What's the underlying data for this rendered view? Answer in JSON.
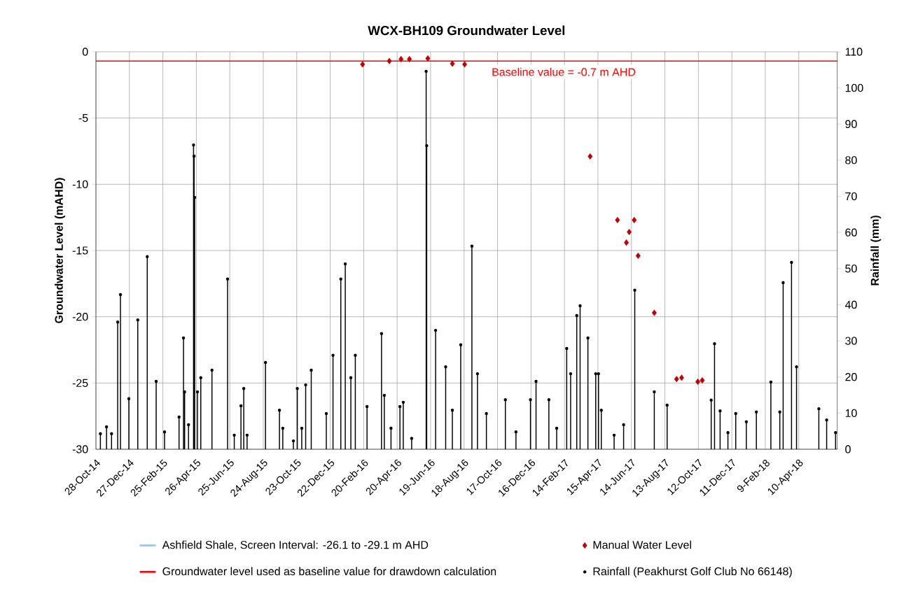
{
  "chart_data": {
    "type": "line",
    "title": "WCX-BH109 Groundwater Level",
    "ylabel": "Groundwater Level (mAHD)",
    "y2label": "Rainfall (mm)",
    "xlim": [
      "2014-10-28",
      "2018-06-18"
    ],
    "xticks": [
      {
        "value": "2014-10-28",
        "label": "28-Oct-14"
      },
      {
        "value": "2014-12-27",
        "label": "27-Dec-14"
      },
      {
        "value": "2015-02-25",
        "label": "25-Feb-15"
      },
      {
        "value": "2015-04-26",
        "label": "26-Apr-15"
      },
      {
        "value": "2015-06-25",
        "label": "25-Jun-15"
      },
      {
        "value": "2015-08-24",
        "label": "24-Aug-15"
      },
      {
        "value": "2015-10-23",
        "label": "23-Oct-15"
      },
      {
        "value": "2015-12-22",
        "label": "22-Dec-15"
      },
      {
        "value": "2016-02-20",
        "label": "20-Feb-16"
      },
      {
        "value": "2016-04-20",
        "label": "20-Apr-16"
      },
      {
        "value": "2016-06-19",
        "label": "19-Jun-16"
      },
      {
        "value": "2016-08-18",
        "label": "18-Aug-16"
      },
      {
        "value": "2016-10-17",
        "label": "17-Oct-16"
      },
      {
        "value": "2016-12-16",
        "label": "16-Dec-16"
      },
      {
        "value": "2017-02-14",
        "label": "14-Feb-17"
      },
      {
        "value": "2017-04-15",
        "label": "15-Apr-17"
      },
      {
        "value": "2017-06-14",
        "label": "14-Jun-17"
      },
      {
        "value": "2017-08-13",
        "label": "13-Aug-17"
      },
      {
        "value": "2017-10-12",
        "label": "12-Oct-17"
      },
      {
        "value": "2017-12-11",
        "label": "11-Dec-17"
      },
      {
        "value": "2018-02-09",
        "label": "9-Feb-18"
      },
      {
        "value": "2018-04-10",
        "label": "10-Apr-18"
      }
    ],
    "ylim": [
      -30,
      0
    ],
    "yticks": [
      -30,
      -25,
      -20,
      -15,
      -10,
      -5,
      0
    ],
    "y2lim": [
      0,
      110
    ],
    "y2ticks": [
      0,
      10,
      20,
      30,
      40,
      50,
      60,
      70,
      80,
      90,
      100,
      110
    ],
    "grid": true,
    "legend": "bottom",
    "annotations": [
      {
        "text": "Baseline value = -0.7 m AHD",
        "x": "2016-10-01",
        "y": -0.7
      }
    ],
    "series": [
      {
        "name": "Ashfield Shale, Screen Interval: -26.1 to -29.1 m AHD",
        "color": "#9dc3e6",
        "line_style": "solid"
      },
      {
        "name": "Manual Water Level",
        "type": "scatter",
        "color": "#c00000",
        "marker": "diamond",
        "x": [
          "2016-02-18",
          "2016-04-06",
          "2016-04-27",
          "2016-05-12",
          "2016-06-14",
          "2016-07-28",
          "2016-08-19",
          "2017-04-01",
          "2017-05-20",
          "2017-06-05",
          "2017-06-10",
          "2017-06-19",
          "2017-06-26",
          "2017-07-25",
          "2017-09-03",
          "2017-09-12",
          "2017-10-11",
          "2017-10-19"
        ],
        "values": [
          -0.95,
          -0.7,
          -0.55,
          -0.55,
          -0.5,
          -0.9,
          -0.95,
          -7.9,
          -12.7,
          -14.4,
          -13.6,
          -12.7,
          -15.4,
          -19.7,
          -24.7,
          -24.6,
          -24.9,
          -24.8
        ]
      },
      {
        "name": "Groundwater level used as baseline value for drawdown calculation",
        "type": "line",
        "color": "#ff0000",
        "line_style": "solid",
        "x": [
          "2014-10-28",
          "2018-06-18"
        ],
        "values": [
          -0.7,
          -0.7
        ]
      },
      {
        "name": "Rainfall (Peakhurst Golf Club No 66148)",
        "type": "lollipop",
        "axis": "y2",
        "color": "#000000",
        "marker": "circle",
        "x": [
          "2014-11-05",
          "2014-11-16",
          "2014-11-25",
          "2014-12-06",
          "2014-12-11",
          "2014-12-26",
          "2015-01-11",
          "2015-01-28",
          "2015-02-13",
          "2015-02-28",
          "2015-03-26",
          "2015-04-03",
          "2015-04-05",
          "2015-04-12",
          "2015-04-21",
          "2015-04-22",
          "2015-04-23",
          "2015-04-28",
          "2015-05-04",
          "2015-05-24",
          "2015-06-21",
          "2015-07-03",
          "2015-07-15",
          "2015-07-20",
          "2015-07-26",
          "2015-08-28",
          "2015-09-22",
          "2015-09-28",
          "2015-10-17",
          "2015-10-24",
          "2015-11-01",
          "2015-11-08",
          "2015-11-18",
          "2015-12-15",
          "2015-12-27",
          "2016-01-10",
          "2016-01-18",
          "2016-01-28",
          "2016-02-05",
          "2016-02-26",
          "2016-03-23",
          "2016-03-28",
          "2016-04-09",
          "2016-04-25",
          "2016-05-01",
          "2016-05-16",
          "2016-06-11",
          "2016-06-12",
          "2016-06-28",
          "2016-07-16",
          "2016-07-28",
          "2016-08-12",
          "2016-09-01",
          "2016-09-11",
          "2016-09-27",
          "2016-10-31",
          "2016-11-19",
          "2016-12-15",
          "2016-12-25",
          "2017-01-17",
          "2017-01-31",
          "2017-02-18",
          "2017-02-25",
          "2017-03-08",
          "2017-03-14",
          "2017-03-28",
          "2017-04-11",
          "2017-04-16",
          "2017-04-21",
          "2017-05-14",
          "2017-05-31",
          "2017-06-20",
          "2017-07-25",
          "2017-08-17",
          "2017-11-04",
          "2017-11-10",
          "2017-11-20",
          "2017-12-04",
          "2017-12-18",
          "2018-01-06",
          "2018-01-24",
          "2018-02-19",
          "2018-03-07",
          "2018-03-13",
          "2018-03-28",
          "2018-04-06",
          "2018-05-16",
          "2018-05-30",
          "2018-06-15"
        ],
        "values": [
          4.3,
          6.2,
          4.3,
          35.2,
          42.8,
          14,
          35.8,
          53.3,
          18.8,
          4.8,
          8.9,
          30.8,
          15.9,
          6.8,
          84.2,
          81.1,
          69.7,
          15.9,
          19.8,
          21.9,
          47.1,
          3.9,
          12,
          16.8,
          3.9,
          24,
          10.8,
          5.8,
          2.3,
          16.8,
          5.8,
          17.8,
          21.9,
          9.9,
          26,
          47.1,
          51.3,
          19.8,
          26,
          11.8,
          32,
          14.9,
          5.8,
          11.8,
          13,
          3,
          104.6,
          84,
          32.9,
          22.8,
          10.8,
          28.9,
          56.2,
          20.9,
          9.9,
          13.7,
          4.8,
          13.7,
          18.8,
          13.7,
          5.8,
          27.9,
          20.9,
          37,
          39.7,
          30.8,
          20.9,
          20.9,
          10.8,
          3.9,
          6.8,
          44,
          15.9,
          12.2,
          13.6,
          29.2,
          10.6,
          4.6,
          9.9,
          7.6,
          10.3,
          18.6,
          10.3,
          46.1,
          51.7,
          22.8,
          11.2,
          8.1,
          4.6
        ]
      }
    ]
  }
}
